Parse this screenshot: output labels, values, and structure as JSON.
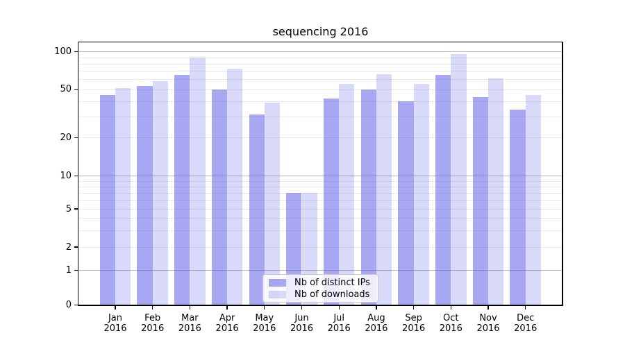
{
  "title": "sequencing 2016",
  "chart_data": {
    "type": "bar",
    "title": "sequencing 2016",
    "categories": [
      "Jan",
      "Feb",
      "Mar",
      "Apr",
      "May",
      "Jun",
      "Jul",
      "Aug",
      "Sep",
      "Oct",
      "Nov",
      "Dec"
    ],
    "year_label": "2016",
    "series": [
      {
        "name": "Nb of distinct IPs",
        "color": "rgba(80,80,230,0.5)",
        "color_over_white": "#a8a8f3",
        "values": [
          45,
          53,
          65,
          50,
          31,
          7,
          42,
          50,
          40,
          65,
          43,
          34
        ]
      },
      {
        "name": "Nb of downloads",
        "color": "rgba(80,80,230,0.22)",
        "color_over_white": "#d8d8f9",
        "values": [
          51,
          58,
          90,
          73,
          39,
          7,
          55,
          66,
          55,
          95,
          61,
          45
        ]
      }
    ],
    "yscale": "symlog",
    "y_ticks": [
      0,
      1,
      2,
      5,
      10,
      20,
      50,
      100
    ],
    "y_minor_gridlines": [
      2,
      3,
      4,
      5,
      6,
      7,
      8,
      9,
      20,
      30,
      40,
      50,
      60,
      70,
      80,
      90
    ],
    "y_major_gridlines": [
      1,
      10,
      100
    ],
    "ylim": [
      0,
      118
    ],
    "xlabel": "",
    "ylabel": "",
    "grid": true,
    "legend_position": "lower center"
  },
  "colors": {
    "background": "#ffffff",
    "grid_minor": "#e9e9e9",
    "grid_major": "#b3b3b3",
    "spine": "#000000",
    "text": "#000000",
    "legend_border": "#cccccc",
    "legend_background": "rgba(255,255,255,0.8)"
  }
}
